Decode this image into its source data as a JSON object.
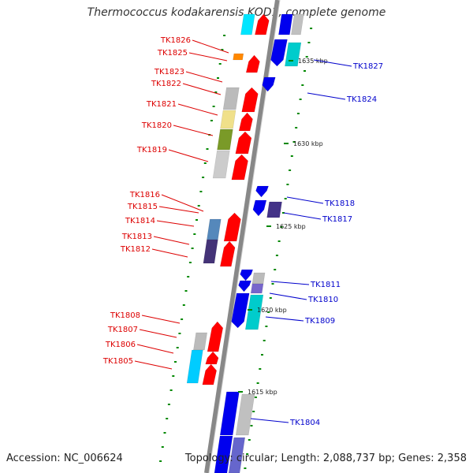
{
  "title": "Thermococcus kodakarensis KOD1, complete genome",
  "footer": {
    "accession": "Accession: NC_006624",
    "summary": "Topology: circular; Length: 2,088,737 bp; Genes: 2,358"
  },
  "colors": {
    "forward_label": "#dd0000",
    "reverse_label": "#0000cc",
    "backbone": "#888888",
    "tick": "#008800"
  },
  "scale": {
    "ticks": [
      {
        "label": "1635 kbp"
      },
      {
        "label": "1630 kbp"
      },
      {
        "label": "1625 kbp"
      },
      {
        "label": "1620 kbp"
      },
      {
        "label": "1615 kbp"
      }
    ]
  },
  "forward_genes": [
    {
      "id": "TK1826"
    },
    {
      "id": "TK1825"
    },
    {
      "id": "TK1823"
    },
    {
      "id": "TK1822"
    },
    {
      "id": "TK1821"
    },
    {
      "id": "TK1820"
    },
    {
      "id": "TK1819"
    },
    {
      "id": "TK1816"
    },
    {
      "id": "TK1815"
    },
    {
      "id": "TK1814"
    },
    {
      "id": "TK1813"
    },
    {
      "id": "TK1812"
    },
    {
      "id": "TK1808"
    },
    {
      "id": "TK1807"
    },
    {
      "id": "TK1806"
    },
    {
      "id": "TK1805"
    }
  ],
  "reverse_genes": [
    {
      "id": "TK1827"
    },
    {
      "id": "TK1824"
    },
    {
      "id": "TK1818"
    },
    {
      "id": "TK1817"
    },
    {
      "id": "TK1811"
    },
    {
      "id": "TK1810"
    },
    {
      "id": "TK1809"
    },
    {
      "id": "TK1804"
    }
  ]
}
